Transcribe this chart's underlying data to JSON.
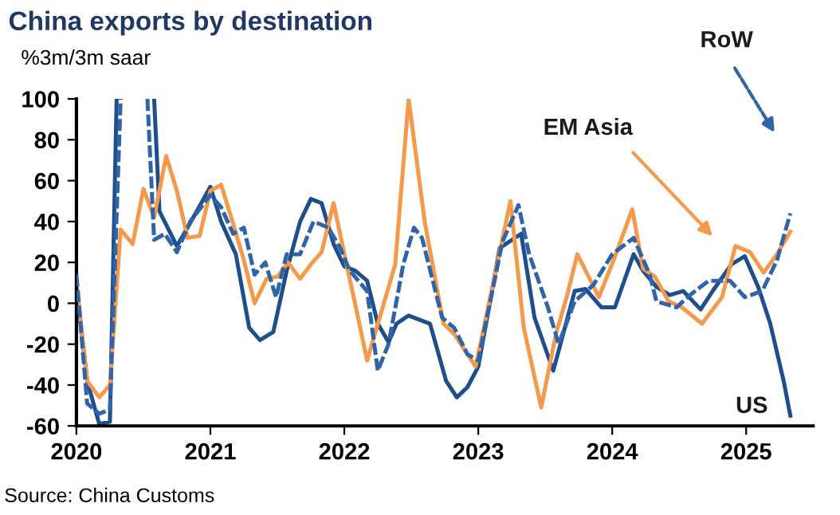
{
  "chart_data": {
    "type": "line",
    "title": "China exports by destination",
    "subtitle": "%3m/3m saar",
    "xlim": [
      2020,
      2025.5
    ],
    "xticks": [
      {
        "value": 2020,
        "label": "2020"
      },
      {
        "value": 2021,
        "label": "2021"
      },
      {
        "value": 2022,
        "label": "2022"
      },
      {
        "value": 2023,
        "label": "2023"
      },
      {
        "value": 2024,
        "label": "2024"
      },
      {
        "value": 2025,
        "label": "2025"
      }
    ],
    "ylim": [
      -60,
      100
    ],
    "yticks": [
      -60,
      -40,
      -20,
      0,
      20,
      40,
      60,
      80,
      100
    ],
    "grid": false,
    "legend": false,
    "series": [
      {
        "color": "#1f4e8c",
        "line_style": "solid",
        "x": [
          2020.0,
          2020.08,
          2020.17,
          2020.25,
          2020.3,
          2020.43,
          2020.58,
          2020.62,
          2020.75,
          2020.83,
          2021.0,
          2021.08,
          2021.19,
          2021.29,
          2021.37,
          2021.47,
          2021.57,
          2021.67,
          2021.75,
          2021.83,
          2021.92,
          2022.0,
          2022.08,
          2022.17,
          2022.25,
          2022.33,
          2022.39,
          2022.48,
          2022.64,
          2022.76,
          2022.84,
          2022.92,
          2023.0,
          2023.16,
          2023.32,
          2023.42,
          2023.56,
          2023.72,
          2023.8,
          2023.92,
          2024.02,
          2024.16,
          2024.23,
          2024.33,
          2024.43,
          2024.53,
          2024.66,
          2024.75,
          2024.89,
          2024.99,
          2025.09,
          2025.18,
          2025.28,
          2025.33
        ],
        "values": [
          8,
          -38,
          -59,
          -58,
          100,
          null,
          100,
          45,
          28,
          37,
          57,
          40,
          24,
          -12,
          -18,
          -14,
          16,
          40,
          51,
          49,
          29,
          18,
          16,
          11,
          -10,
          -19,
          -10,
          -6,
          -10,
          -38,
          -46,
          -41,
          -31,
          27,
          34,
          -7,
          -33,
          6,
          7,
          -2,
          -2,
          24,
          16,
          8,
          4,
          6,
          -3,
          6,
          19,
          23,
          8,
          -10,
          -38,
          -55
        ]
      },
      {
        "color": "#f59a4a",
        "line_style": "solid",
        "x": [
          2020.0,
          2020.08,
          2020.17,
          2020.25,
          2020.33,
          2020.42,
          2020.5,
          2020.58,
          2020.67,
          2020.75,
          2020.83,
          2020.92,
          2021.0,
          2021.08,
          2021.17,
          2021.25,
          2021.33,
          2021.42,
          2021.5,
          2021.58,
          2021.67,
          2021.75,
          2021.83,
          2021.92,
          2022.0,
          2022.08,
          2022.17,
          2022.38,
          2022.48,
          2022.6,
          2022.74,
          2022.82,
          2022.98,
          2023.24,
          2023.34,
          2023.47,
          2023.58,
          2023.66,
          2023.74,
          2023.9,
          2024.01,
          2024.15,
          2024.23,
          2024.32,
          2024.42,
          2024.52,
          2024.67,
          2024.82,
          2024.92,
          2025.03,
          2025.13,
          2025.23,
          2025.33
        ],
        "values": [
          11,
          -38,
          -46,
          -40,
          36,
          29,
          56,
          42,
          72,
          55,
          32,
          33,
          55,
          58,
          39,
          21,
          0,
          12,
          13,
          20,
          12,
          19,
          25,
          49,
          24,
          0,
          -28,
          19,
          100,
          40,
          -10,
          -15,
          -31,
          50,
          -12,
          -51,
          -15,
          3,
          24,
          3,
          21,
          46,
          17,
          13,
          1,
          -2,
          -10,
          3,
          28,
          25,
          15,
          24,
          35
        ]
      },
      {
        "color": "#2f65a8",
        "line_style": "dashed",
        "x": [
          2020.0,
          2020.08,
          2020.17,
          2020.25,
          2020.33,
          2020.43,
          2020.53,
          2020.58,
          2020.66,
          2020.75,
          2020.85,
          2021.0,
          2021.08,
          2021.17,
          2021.25,
          2021.33,
          2021.41,
          2021.49,
          2021.57,
          2021.67,
          2021.77,
          2021.88,
          2021.97,
          2022.04,
          2022.17,
          2022.25,
          2022.33,
          2022.44,
          2022.52,
          2022.58,
          2022.73,
          2022.82,
          2022.92,
          2023.0,
          2023.18,
          2023.3,
          2023.38,
          2023.52,
          2023.6,
          2023.72,
          2023.86,
          2024.0,
          2024.16,
          2024.28,
          2024.33,
          2024.48,
          2024.58,
          2024.72,
          2024.88,
          2024.99,
          2025.12,
          2025.23,
          2025.33
        ],
        "values": [
          14,
          -49,
          -54,
          -52,
          100,
          null,
          100,
          31,
          34,
          25,
          40,
          53,
          47,
          34,
          37,
          14,
          20,
          3,
          24,
          24,
          40,
          37,
          27,
          16,
          6,
          -33,
          -20,
          19,
          37,
          32,
          -7,
          -12,
          -25,
          -28,
          30,
          48,
          24,
          -2,
          -20,
          1,
          9,
          24,
          32,
          14,
          1,
          -2,
          4,
          11,
          11,
          3,
          6,
          21,
          44
        ]
      }
    ],
    "annotations": [
      "US",
      "EM Asia",
      "RoW",
      "Source: China Customs"
    ]
  }
}
